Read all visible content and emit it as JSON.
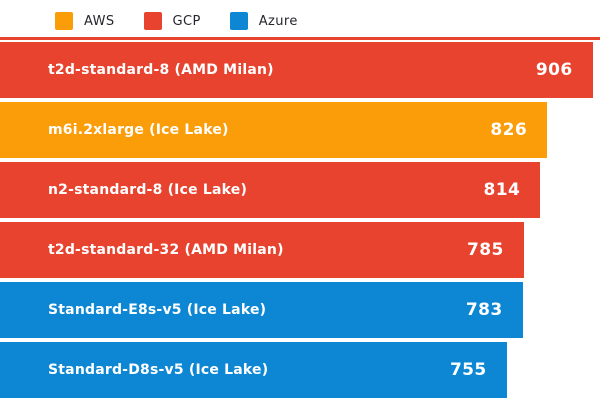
{
  "colors": {
    "AWS": "#fb9d09",
    "GCP": "#e8432f",
    "Azure": "#0d87d3",
    "bar_text": "#ffffff",
    "legend_text": "#26262e",
    "background": "#ffffff"
  },
  "legend": {
    "items": [
      {
        "label": "AWS",
        "provider": "AWS"
      },
      {
        "label": "GCP",
        "provider": "GCP"
      },
      {
        "label": "Azure",
        "provider": "Azure"
      }
    ]
  },
  "chart_data": {
    "type": "bar",
    "orientation": "horizontal",
    "title": "",
    "xlabel": "",
    "ylabel": "",
    "legend_position": "top",
    "grid": false,
    "value_labels": true,
    "xlim": [
      -135,
      919
    ],
    "cropped_bar_above": true,
    "bars": [
      {
        "label": "t2d-standard-8 (AMD Milan)",
        "value": 906,
        "provider": "GCP"
      },
      {
        "label": "m6i.2xlarge (Ice Lake)",
        "value": 826,
        "provider": "AWS"
      },
      {
        "label": "n2-standard-8 (Ice Lake)",
        "value": 814,
        "provider": "GCP"
      },
      {
        "label": "t2d-standard-32 (AMD Milan)",
        "value": 785,
        "provider": "GCP"
      },
      {
        "label": "Standard-E8s-v5 (Ice Lake)",
        "value": 783,
        "provider": "Azure"
      },
      {
        "label": "Standard-D8s-v5 (Ice Lake)",
        "value": 755,
        "provider": "Azure"
      }
    ]
  }
}
